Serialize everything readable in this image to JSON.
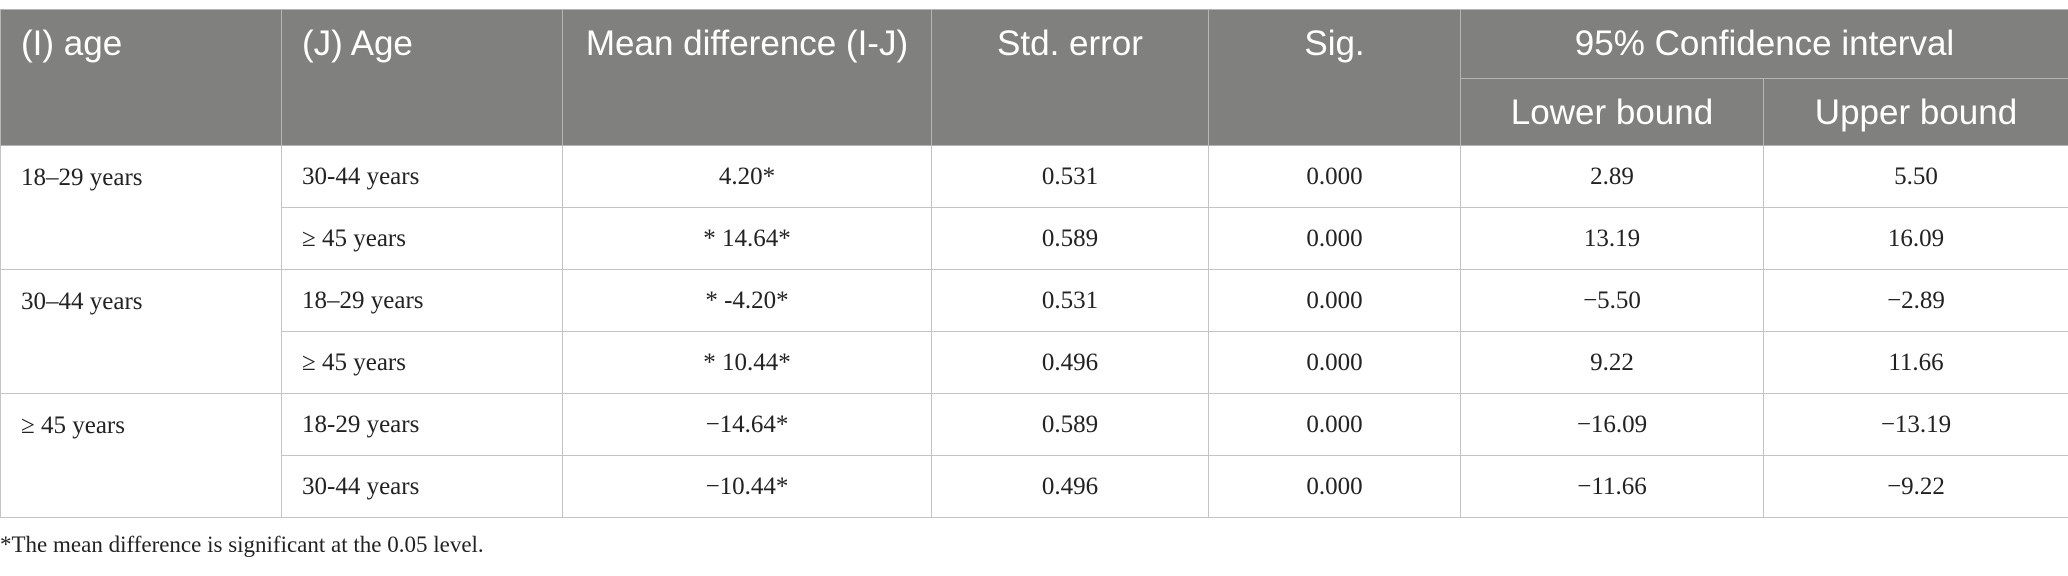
{
  "table": {
    "header": {
      "i_age": "(I) age",
      "j_age": "(J) Age",
      "mean_diff": "Mean difference (I-J)",
      "std_error": "Std. error",
      "sig": "Sig.",
      "ci": "95% Confidence interval",
      "lower": "Lower bound",
      "upper": "Upper bound"
    },
    "groups": [
      {
        "i_age": "18–29 years",
        "rows": [
          [
            "30-44 years",
            "4.20*",
            "0.531",
            "0.000",
            "2.89",
            "5.50"
          ],
          [
            "≥ 45 years",
            "* 14.64*",
            "0.589",
            "0.000",
            "13.19",
            "16.09"
          ]
        ]
      },
      {
        "i_age": "30–44 years",
        "rows": [
          [
            "18–29 years",
            "* -4.20*",
            "0.531",
            "0.000",
            "−5.50",
            "−2.89"
          ],
          [
            "≥ 45 years",
            "* 10.44*",
            "0.496",
            "0.000",
            "9.22",
            "11.66"
          ]
        ]
      },
      {
        "i_age": "≥ 45 years",
        "rows": [
          [
            "18-29 years",
            "−14.64*",
            "0.589",
            "0.000",
            "−16.09",
            "−13.19"
          ],
          [
            "30-44 years",
            "−10.44*",
            "0.496",
            "0.000",
            "−11.66",
            "−9.22"
          ]
        ]
      }
    ]
  },
  "footnote": "*The mean difference is significant at the 0.05 level."
}
